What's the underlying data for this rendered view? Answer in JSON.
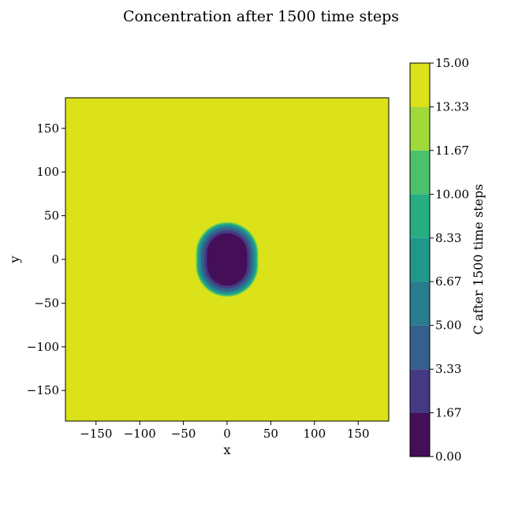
{
  "chart_data": {
    "type": "heatmap",
    "subtype": "filled-contour",
    "title": "Concentration after 1500 time steps",
    "xlabel": "x",
    "ylabel": "y",
    "xlim": [
      -185,
      185
    ],
    "ylim": [
      -185,
      185
    ],
    "xticks": [
      -150,
      -100,
      -50,
      0,
      50,
      100,
      150
    ],
    "yticks": [
      -150,
      -100,
      -50,
      0,
      50,
      100,
      150
    ],
    "xtick_labels": [
      "−150",
      "−100",
      "−50",
      "0",
      "50",
      "100",
      "150"
    ],
    "ytick_labels": [
      "−150",
      "−100",
      "−50",
      "0",
      "50",
      "100",
      "150"
    ],
    "background_level": 15.0,
    "contour_shape": "stadium (vertical), centered at (0, 0)",
    "contour_boundaries": [
      {
        "level": 1.67,
        "half_width": 23,
        "half_height": 30
      },
      {
        "level": 3.33,
        "half_width": 26,
        "half_height": 33
      },
      {
        "level": 5.0,
        "half_width": 29,
        "half_height": 36
      },
      {
        "level": 6.67,
        "half_width": 31,
        "half_height": 38
      },
      {
        "level": 8.33,
        "half_width": 33,
        "half_height": 40
      },
      {
        "level": 10.0,
        "half_width": 34,
        "half_height": 41
      },
      {
        "level": 11.67,
        "half_width": 35,
        "half_height": 42
      },
      {
        "level": 13.33,
        "half_width": 36,
        "half_height": 43
      }
    ],
    "colorbar": {
      "label": "C after 1500 time steps",
      "levels": [
        0.0,
        1.67,
        3.33,
        5.0,
        6.67,
        8.33,
        10.0,
        11.67,
        13.33,
        15.0
      ],
      "tick_labels": [
        "0.00",
        "1.67",
        "3.33",
        "5.00",
        "6.67",
        "8.33",
        "10.00",
        "11.67",
        "13.33",
        "15.00"
      ],
      "colors": [
        "#440f57",
        "#443a83",
        "#355f8d",
        "#287c8e",
        "#1f978b",
        "#27ad81",
        "#4ac16d",
        "#9fda3a",
        "#dbe21a"
      ]
    },
    "grid": false
  }
}
